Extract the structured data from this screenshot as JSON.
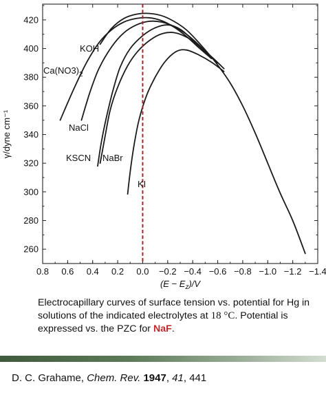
{
  "chart_data": {
    "type": "line",
    "xlabel": "(E − Ez)/V",
    "ylabel": "γ/dyne cm⁻¹",
    "xlim": [
      0.8,
      -1.4
    ],
    "ylim": [
      250,
      431
    ],
    "x_ticks": [
      "0.8",
      "0.6",
      "0.4",
      "0.2",
      "0.0",
      "−0.2",
      "−0.4",
      "−0.6",
      "−0.8",
      "−1.0",
      "−1.2",
      "−1.4"
    ],
    "y_ticks": [
      "260",
      "280",
      "300",
      "320",
      "340",
      "360",
      "380",
      "400",
      "420"
    ],
    "pzc_line": {
      "x": 0.0,
      "color": "#b02020",
      "style": "dashed"
    },
    "series": [
      {
        "name": "KOH",
        "points": [
          [
            0.34,
            403
          ],
          [
            0.25,
            414
          ],
          [
            0.15,
            421
          ],
          [
            0.05,
            424
          ],
          [
            -0.05,
            424.5
          ],
          [
            -0.15,
            423
          ],
          [
            -0.25,
            419
          ],
          [
            -0.35,
            413
          ],
          [
            -0.45,
            404
          ],
          [
            -0.55,
            394
          ]
        ]
      },
      {
        "name": "Ca(NO3)2",
        "points": [
          [
            0.66,
            350
          ],
          [
            0.55,
            372
          ],
          [
            0.45,
            390
          ],
          [
            0.35,
            404
          ],
          [
            0.25,
            413
          ],
          [
            0.15,
            418.5
          ],
          [
            0.05,
            421
          ],
          [
            -0.05,
            421.5
          ],
          [
            -0.15,
            419.5
          ],
          [
            -0.25,
            415
          ],
          [
            -0.35,
            408.5
          ],
          [
            -0.45,
            400.5
          ],
          [
            -0.55,
            393
          ]
        ]
      },
      {
        "name": "NaCl",
        "points": [
          [
            0.49,
            350
          ],
          [
            0.42,
            370
          ],
          [
            0.35,
            386
          ],
          [
            0.25,
            401
          ],
          [
            0.15,
            411
          ],
          [
            0.05,
            416.5
          ],
          [
            -0.05,
            419
          ],
          [
            -0.15,
            418.5
          ],
          [
            -0.25,
            415.5
          ],
          [
            -0.35,
            410
          ],
          [
            -0.45,
            402.5
          ],
          [
            -0.55,
            393.5
          ]
        ]
      },
      {
        "name": "KSCN",
        "points": [
          [
            0.36,
            318
          ],
          [
            0.33,
            335
          ],
          [
            0.29,
            352
          ],
          [
            0.24,
            370
          ],
          [
            0.18,
            387
          ],
          [
            0.1,
            400
          ],
          [
            0.0,
            409
          ],
          [
            -0.1,
            414.5
          ],
          [
            -0.2,
            416.5
          ],
          [
            -0.3,
            413.5
          ],
          [
            -0.4,
            406
          ],
          [
            -0.5,
            397.5
          ],
          [
            -0.6,
            390
          ]
        ]
      },
      {
        "name": "NaBr",
        "points": [
          [
            0.34,
            320
          ],
          [
            0.3,
            339
          ],
          [
            0.26,
            357
          ],
          [
            0.2,
            373
          ],
          [
            0.12,
            388
          ],
          [
            0.04,
            398
          ],
          [
            -0.06,
            406
          ],
          [
            -0.16,
            410.5
          ],
          [
            -0.26,
            411
          ],
          [
            -0.36,
            407.5
          ],
          [
            -0.46,
            401
          ],
          [
            -0.56,
            393.5
          ],
          [
            -0.65,
            386
          ]
        ]
      },
      {
        "name": "KI",
        "points": [
          [
            0.12,
            298.5
          ],
          [
            0.1,
            314
          ],
          [
            0.07,
            332
          ],
          [
            0.03,
            350
          ],
          [
            -0.03,
            367
          ],
          [
            -0.1,
            380
          ],
          [
            -0.18,
            391
          ],
          [
            -0.27,
            398
          ],
          [
            -0.35,
            399
          ],
          [
            -0.45,
            395.5
          ],
          [
            -0.55,
            390.5
          ],
          [
            -0.65,
            384
          ]
        ]
      },
      {
        "name": "",
        "points": [
          [
            -0.55,
            394
          ],
          [
            -0.6,
            388.5
          ],
          [
            -0.7,
            376
          ],
          [
            -0.8,
            360
          ],
          [
            -0.9,
            341
          ],
          [
            -1.0,
            320
          ],
          [
            -1.1,
            299
          ],
          [
            -1.2,
            280
          ],
          [
            -1.3,
            257
          ]
        ]
      }
    ],
    "curve_labels": [
      "KOH",
      "Ca(NO3)2",
      "NaCl",
      "KSCN",
      "NaBr",
      "KI"
    ]
  },
  "caption": {
    "text": "Electrocapillary curves of surface tension vs. potential for Hg in solutions of the indicated electrolytes at",
    "temperature": "18 °C",
    "text2": ". Potential is expressed vs. the PZC for",
    "highlight": "NaF",
    "end": "."
  },
  "reference": {
    "authors": "D. C. Grahame,",
    "journal": "Chem. Rev.",
    "year": "1947",
    "volume": "41",
    "pages": "441"
  },
  "colors": {
    "curve": "#1a1a1a",
    "pzc": "#b02020",
    "highlight": "#c0282d",
    "band": "#4a6a47"
  }
}
